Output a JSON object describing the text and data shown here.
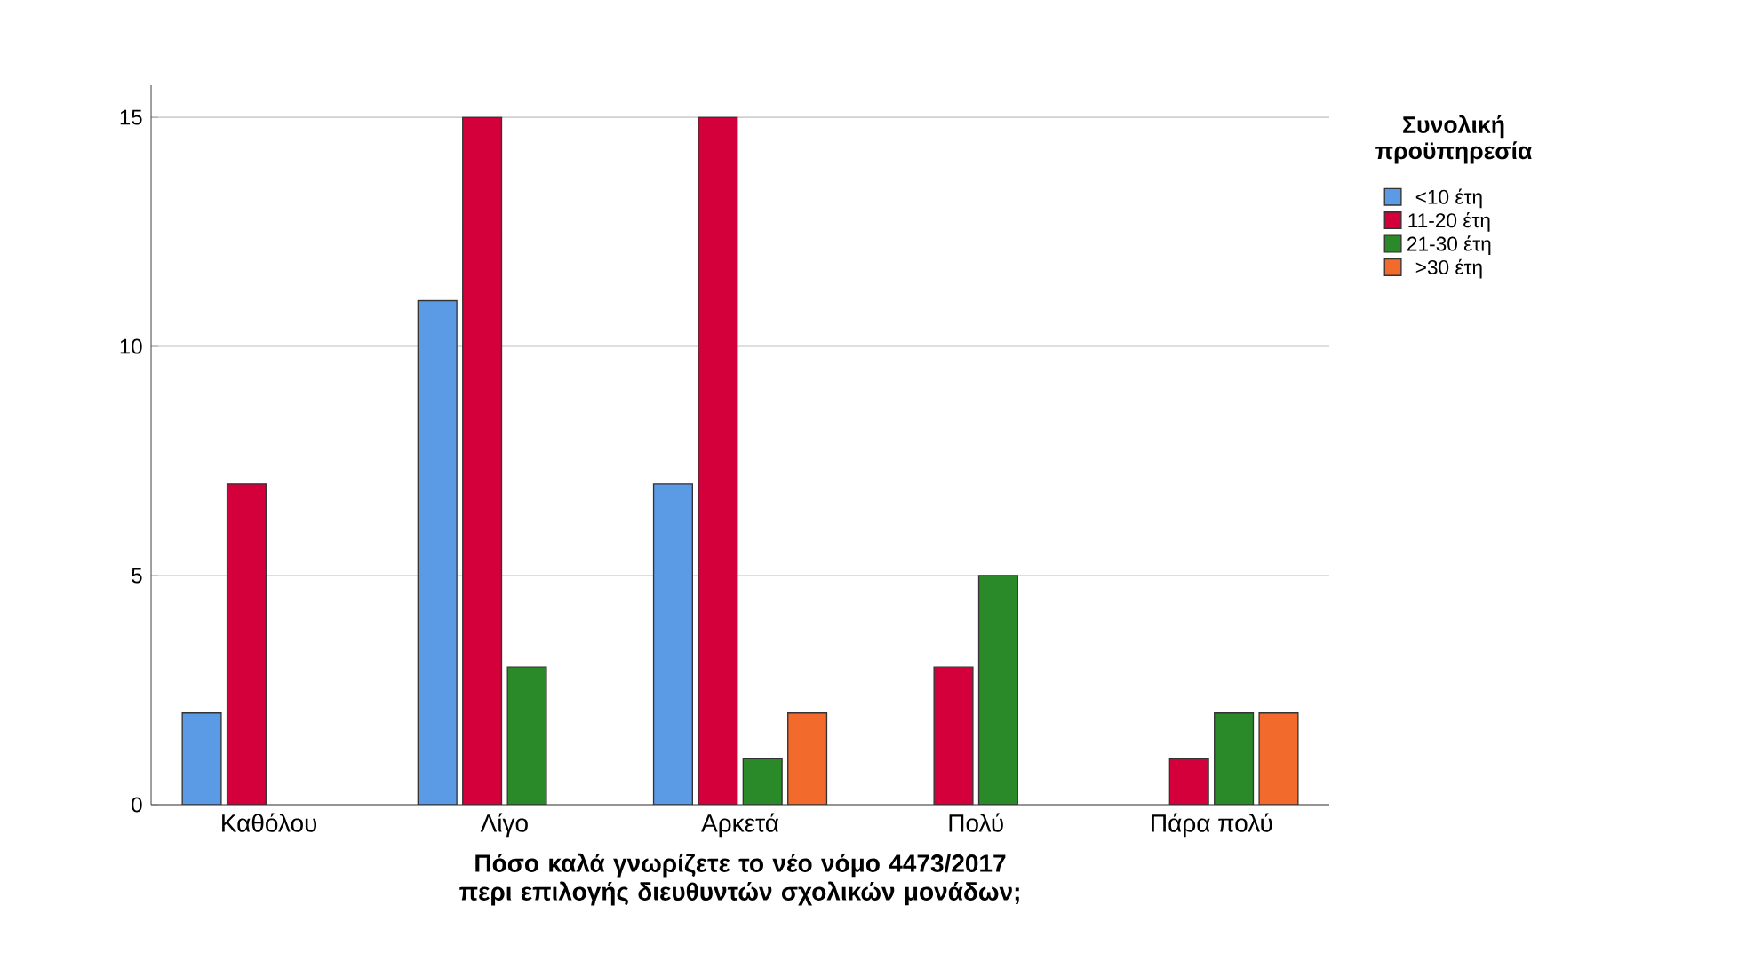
{
  "chart_data": {
    "type": "bar",
    "xlabel": "Πόσο καλά γνωρίζετε το νέο νόμο 4473/2017 περι επιλογής διευθυντών σχολικών μονάδων;",
    "legend_title": "Συνολική προϋπηρεσία",
    "categories": [
      "Καθόλου",
      "Λίγο",
      "Αρκετά",
      "Πολύ",
      "Πάρα πολύ"
    ],
    "series": [
      {
        "name": "<10 έτη",
        "color": "#5b9be6",
        "values": [
          2,
          11,
          7,
          null,
          null
        ]
      },
      {
        "name": "11-20 έτη",
        "color": "#d3003b",
        "values": [
          7,
          15,
          15,
          3,
          1
        ]
      },
      {
        "name": "21-30 έτη",
        "color": "#2a8a2a",
        "values": [
          null,
          3,
          1,
          5,
          2
        ]
      },
      {
        "name": ">30 έτη",
        "color": "#f26a2c",
        "values": [
          null,
          null,
          2,
          null,
          2
        ]
      }
    ],
    "ylim": [
      0,
      15.7
    ],
    "yticks": [
      0,
      5,
      10,
      15
    ],
    "grid": "y",
    "legend": "top right"
  }
}
